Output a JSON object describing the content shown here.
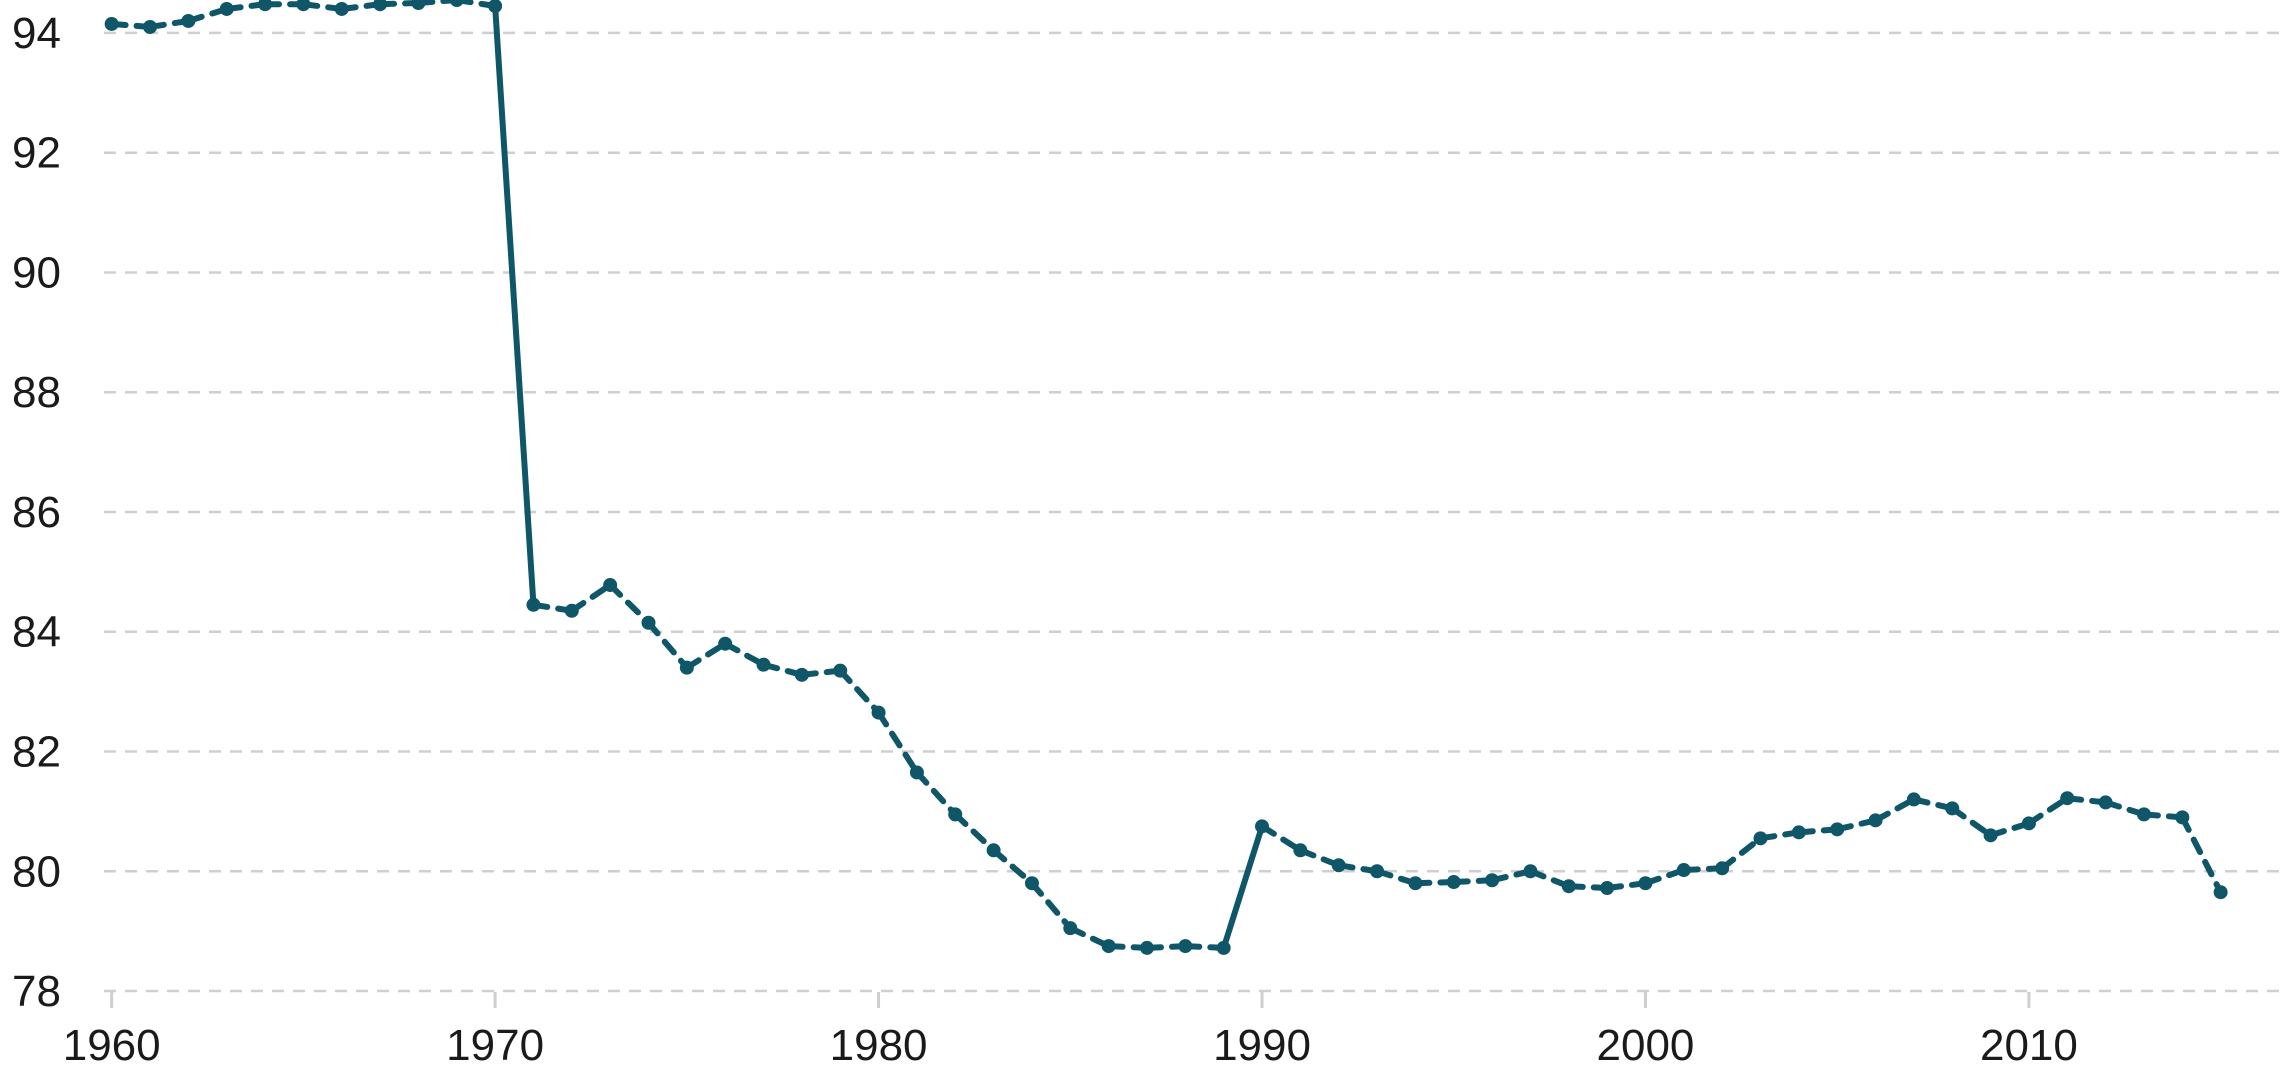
{
  "chart_data": {
    "type": "line",
    "title": "",
    "xlabel": "",
    "ylabel": "",
    "xlim": [
      1959.8,
      2016.6
    ],
    "ylim": [
      77.85,
      94.55
    ],
    "yticks": [
      78,
      80,
      82,
      84,
      86,
      88,
      90,
      92,
      94
    ],
    "xticks": [
      1960,
      1970,
      1980,
      1990,
      2000,
      2010
    ],
    "grid": true,
    "legend": "none",
    "colors": {
      "series": "#0e5668",
      "grid": "#cfcfcf",
      "text": "#1a1a1a"
    },
    "series": [
      {
        "x": [
          1960,
          1961,
          1962,
          1963,
          1964,
          1965,
          1966,
          1967,
          1968,
          1969,
          1970,
          1971,
          1972,
          1973,
          1974,
          1975,
          1976,
          1977,
          1978,
          1979,
          1980,
          1981,
          1982,
          1983,
          1984,
          1985,
          1986,
          1987,
          1988,
          1989,
          1990,
          1991,
          1992,
          1993,
          1994,
          1995,
          1996,
          1997,
          1998,
          1999,
          2000,
          2001,
          2002,
          2003,
          2004,
          2005,
          2006,
          2007,
          2008,
          2009,
          2010,
          2011,
          2012,
          2013,
          2014,
          2015
        ],
        "values": [
          94.15,
          94.1,
          94.2,
          94.4,
          94.48,
          94.48,
          94.4,
          94.48,
          94.5,
          94.55,
          94.45,
          84.45,
          84.35,
          84.78,
          84.15,
          83.4,
          83.8,
          83.45,
          83.28,
          83.35,
          82.65,
          81.65,
          80.95,
          80.35,
          79.8,
          79.05,
          78.75,
          78.72,
          78.75,
          78.72,
          80.75,
          80.35,
          80.1,
          80.0,
          79.8,
          79.82,
          79.85,
          80.0,
          79.75,
          79.72,
          79.8,
          80.02,
          80.05,
          80.55,
          80.65,
          80.7,
          80.85,
          81.2,
          81.05,
          80.6,
          80.8,
          81.22,
          81.15,
          80.95,
          80.9,
          79.65
        ]
      }
    ]
  }
}
